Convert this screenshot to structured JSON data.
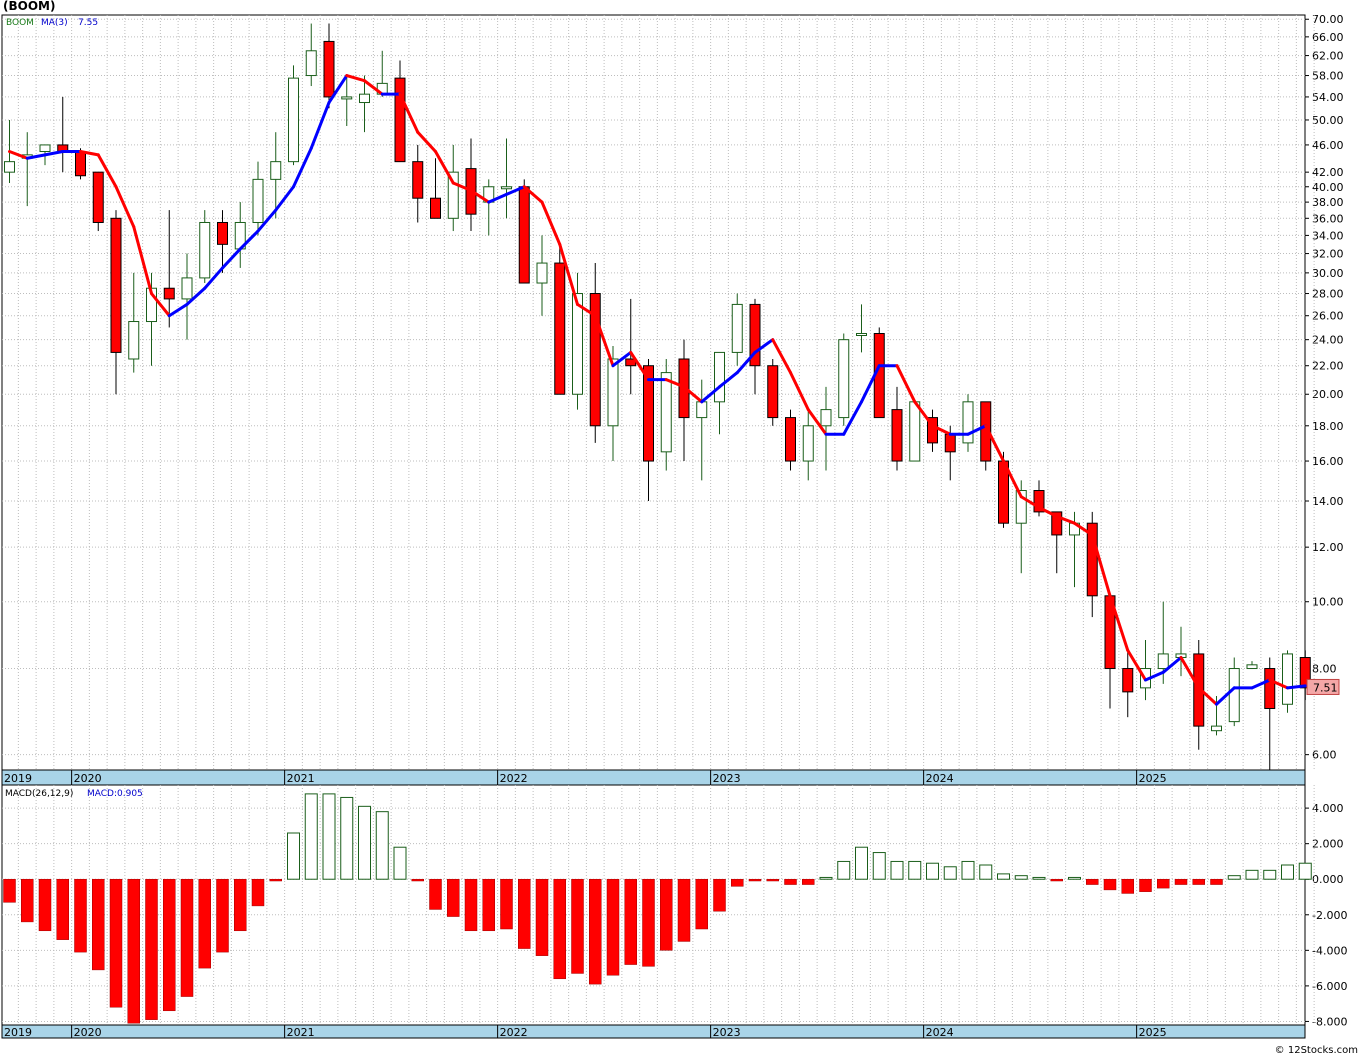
{
  "header": {
    "symbol_title": "(BOOM)"
  },
  "colors": {
    "up": "#1a5e1a",
    "down": "#ff0000",
    "ma_up": "#0000ff",
    "ma_down": "#ff0000",
    "macd_pos": "#ffffff",
    "macd_neg": "#ff0000",
    "axis_band": "#a9d4e8",
    "grid": "#bdbdbd"
  },
  "credit": "© 12Stocks.com",
  "chart_data": [
    {
      "type": "candlestick",
      "name": "price",
      "scale": "log",
      "ylim": [
        5.7,
        71
      ],
      "legend": {
        "ticker": "BOOM",
        "ma_label": "MA(3)",
        "ma_value": "7.55",
        "position": "top-left"
      },
      "last_price_label": "7.51",
      "y_ticks": [
        {
          "v": 70,
          "label": "70.00"
        },
        {
          "v": 66,
          "label": "66.00"
        },
        {
          "v": 62,
          "label": "62.00"
        },
        {
          "v": 58,
          "label": "58.00"
        },
        {
          "v": 54,
          "label": "54.00"
        },
        {
          "v": 50,
          "label": "50.00"
        },
        {
          "v": 46,
          "label": "46.00"
        },
        {
          "v": 42,
          "label": "42.00"
        },
        {
          "v": 40,
          "label": "40.00"
        },
        {
          "v": 38,
          "label": "38.00"
        },
        {
          "v": 36,
          "label": "36.00"
        },
        {
          "v": 34,
          "label": "34.00"
        },
        {
          "v": 32,
          "label": "32.00"
        },
        {
          "v": 30,
          "label": "30.00"
        },
        {
          "v": 28,
          "label": "28.00"
        },
        {
          "v": 26,
          "label": "26.00"
        },
        {
          "v": 24,
          "label": "24.00"
        },
        {
          "v": 22,
          "label": "22.00"
        },
        {
          "v": 20,
          "label": "20.00"
        },
        {
          "v": 18,
          "label": "18.00"
        },
        {
          "v": 16,
          "label": "16.00"
        },
        {
          "v": 14,
          "label": "14.00"
        },
        {
          "v": 12,
          "label": "12.00"
        },
        {
          "v": 10,
          "label": "10.00"
        },
        {
          "v": 8,
          "label": "8.00"
        },
        {
          "v": 6,
          "label": "6.00"
        }
      ],
      "x_labels": [
        "2019",
        "2020",
        "2021",
        "2022",
        "2023",
        "2024",
        "2025"
      ],
      "year_start_index": [
        0,
        4,
        16,
        28,
        40,
        52,
        64
      ],
      "candles": [
        [
          42,
          50,
          40.5,
          43.5
        ],
        [
          44,
          48,
          37.5,
          44.5
        ],
        [
          45,
          46,
          43,
          46
        ],
        [
          46,
          54,
          42,
          45
        ],
        [
          45,
          45.5,
          41,
          41.5
        ],
        [
          42,
          42,
          34.5,
          35.5
        ],
        [
          36,
          37,
          20,
          23
        ],
        [
          22.5,
          30,
          21.5,
          25.5
        ],
        [
          25.5,
          30,
          22,
          28.5
        ],
        [
          28.5,
          37,
          25,
          27.5
        ],
        [
          27.5,
          32,
          24,
          29.5
        ],
        [
          29.5,
          37,
          29,
          35.5
        ],
        [
          35.5,
          37,
          30,
          33
        ],
        [
          32.5,
          38,
          30.5,
          35.5
        ],
        [
          35.5,
          43.5,
          34,
          41
        ],
        [
          41,
          48,
          36,
          43.5
        ],
        [
          43.5,
          60,
          43,
          57.5
        ],
        [
          58,
          69,
          56,
          63
        ],
        [
          65,
          69,
          52,
          54
        ],
        [
          54,
          58,
          49,
          54
        ],
        [
          53,
          58,
          48,
          54.5
        ],
        [
          54.5,
          63,
          54,
          56.5
        ],
        [
          57.5,
          61,
          43.5,
          43.5
        ],
        [
          43.5,
          46,
          35.5,
          38.5
        ],
        [
          38.5,
          44,
          36,
          36
        ],
        [
          36,
          46,
          34.5,
          42
        ],
        [
          42.5,
          47,
          34.5,
          36.5
        ],
        [
          38,
          41,
          34,
          40
        ],
        [
          40,
          47,
          36,
          40
        ],
        [
          40,
          41,
          29,
          29
        ],
        [
          29,
          34,
          26,
          31
        ],
        [
          31,
          33,
          20,
          20
        ],
        [
          20,
          30,
          19,
          28
        ],
        [
          28,
          31,
          17,
          18
        ],
        [
          18,
          23.5,
          16,
          22.5
        ],
        [
          22.5,
          27.5,
          20,
          22
        ],
        [
          22,
          22.5,
          14,
          16
        ],
        [
          16.5,
          22.5,
          15.5,
          21.5
        ],
        [
          22.5,
          24,
          16,
          18.5
        ],
        [
          18.5,
          21,
          15,
          19.5
        ],
        [
          19.5,
          23,
          17.5,
          23
        ],
        [
          23,
          28,
          22,
          27
        ],
        [
          27,
          27.5,
          20,
          22
        ],
        [
          22,
          22.5,
          18,
          18.5
        ],
        [
          18.5,
          19,
          15.5,
          16
        ],
        [
          16,
          19,
          15,
          18
        ],
        [
          18,
          20.5,
          15.5,
          19
        ],
        [
          18.5,
          24.5,
          18,
          24
        ],
        [
          24.5,
          27,
          23,
          24.5
        ],
        [
          24.5,
          25,
          18.5,
          18.5
        ],
        [
          19,
          20.5,
          15.5,
          16
        ],
        [
          16,
          19.5,
          16,
          19.5
        ],
        [
          18.5,
          19,
          16.5,
          17
        ],
        [
          17.5,
          18,
          15,
          16.5
        ],
        [
          17,
          20,
          16.5,
          19.5
        ],
        [
          19.5,
          19.5,
          15.5,
          16
        ],
        [
          16,
          16.5,
          12.8,
          13
        ],
        [
          13,
          15,
          11,
          14.5
        ],
        [
          14.5,
          15,
          13.3,
          13.5
        ],
        [
          13.5,
          13.5,
          11,
          12.5
        ],
        [
          12.5,
          13.5,
          10.5,
          13
        ],
        [
          13,
          13.5,
          9.5,
          10.2
        ],
        [
          10.2,
          10.2,
          7,
          8
        ],
        [
          8,
          8.5,
          6.8,
          7.4
        ],
        [
          7.5,
          8.8,
          7.2,
          8
        ],
        [
          8,
          10,
          7.6,
          8.4
        ],
        [
          8.3,
          9.2,
          7.8,
          8.4
        ],
        [
          8.4,
          8.8,
          6.1,
          6.6
        ],
        [
          6.5,
          7.3,
          6.4,
          6.6
        ],
        [
          6.7,
          8.3,
          6.6,
          8
        ],
        [
          8,
          8.2,
          8,
          8.1
        ],
        [
          8,
          8.3,
          5.7,
          7
        ],
        [
          7.1,
          8.5,
          6.9,
          8.4
        ],
        [
          8.3,
          8.5,
          7.2,
          7.5
        ]
      ],
      "ma3": [
        45,
        44,
        44.5,
        45,
        45,
        44.5,
        40,
        35,
        28,
        26,
        27,
        28.5,
        30.5,
        32.5,
        34.5,
        37,
        40,
        45.5,
        53,
        58,
        57,
        54.5,
        54.5,
        48,
        45,
        40.5,
        39.5,
        38,
        39,
        40,
        38,
        33,
        27,
        26,
        22,
        23,
        21,
        21,
        20.5,
        19.5,
        20.5,
        21.5,
        23,
        24,
        21.5,
        19,
        17.5,
        17.5,
        19.5,
        22,
        22,
        19.5,
        18,
        17.5,
        17.5,
        18,
        16,
        14.2,
        13.7,
        13.3,
        13,
        12.5,
        10.2,
        8.5,
        7.7,
        7.9,
        8.3,
        7.5,
        7.1,
        7.5,
        7.5,
        7.7,
        7.5,
        7.55
      ]
    },
    {
      "type": "bar",
      "name": "macd",
      "legend": {
        "label": "MACD(26,12,9)",
        "value_label": "MACD:0.905",
        "position": "top-left"
      },
      "ylim": [
        -8.2,
        5.3
      ],
      "y_ticks": [
        {
          "v": 4,
          "label": "4.000"
        },
        {
          "v": 2,
          "label": "2.000"
        },
        {
          "v": 0,
          "label": "0.000"
        },
        {
          "v": -2,
          "label": "-2.000"
        },
        {
          "v": -4,
          "label": "-4.000"
        },
        {
          "v": -6,
          "label": "-6.000"
        },
        {
          "v": -8,
          "label": "-8.000"
        }
      ],
      "x_labels": [
        "2019",
        "2020",
        "2021",
        "2022",
        "2023",
        "2024",
        "2025"
      ],
      "values": [
        -1.3,
        -2.4,
        -2.9,
        -3.4,
        -4.1,
        -5.1,
        -7.2,
        -8.1,
        -7.9,
        -7.4,
        -6.6,
        -5.0,
        -4.1,
        -2.9,
        -1.5,
        -0.1,
        2.6,
        4.8,
        4.8,
        4.6,
        4.1,
        3.8,
        1.8,
        -0.1,
        -1.7,
        -2.1,
        -2.9,
        -2.9,
        -2.8,
        -3.9,
        -4.3,
        -5.6,
        -5.3,
        -5.9,
        -5.4,
        -4.8,
        -4.9,
        -4.0,
        -3.5,
        -2.8,
        -1.8,
        -0.4,
        -0.1,
        -0.1,
        -0.3,
        -0.3,
        0.1,
        1.0,
        1.8,
        1.5,
        1.0,
        1.0,
        0.9,
        0.7,
        1.0,
        0.8,
        0.3,
        0.2,
        0.1,
        -0.1,
        0.1,
        -0.3,
        -0.6,
        -0.8,
        -0.7,
        -0.5,
        -0.3,
        -0.3,
        -0.3,
        0.2,
        0.5,
        0.5,
        0.8,
        0.9
      ]
    }
  ]
}
